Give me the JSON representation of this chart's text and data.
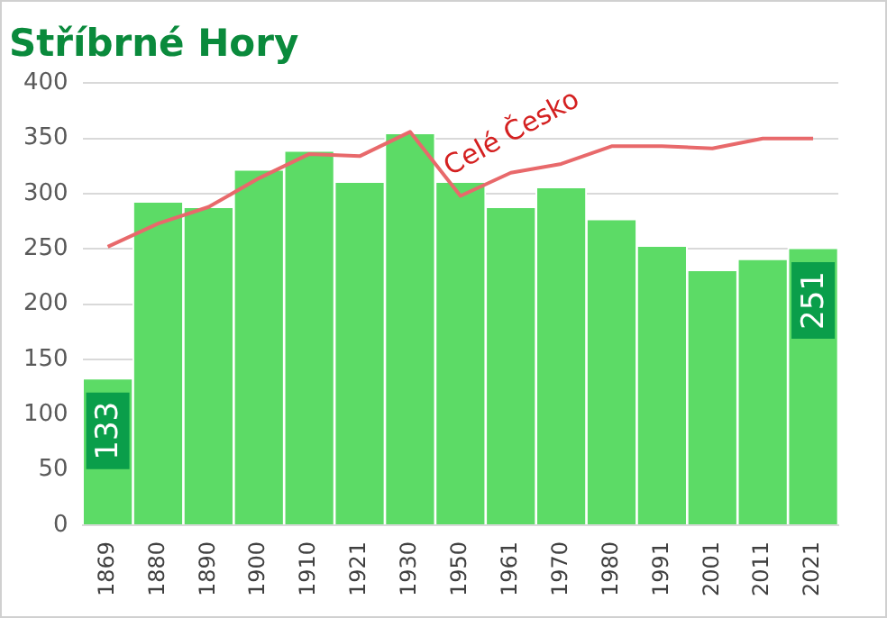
{
  "chart_data": {
    "type": "bar",
    "title": "Stříbrné Hory",
    "categories": [
      "1869",
      "1880",
      "1890",
      "1900",
      "1910",
      "1921",
      "1930",
      "1950",
      "1961",
      "1970",
      "1980",
      "1991",
      "2001",
      "2011",
      "2021"
    ],
    "series": [
      {
        "color": "#5cdb66",
        "values": [
          133,
          293,
          288,
          322,
          339,
          311,
          355,
          311,
          288,
          306,
          277,
          253,
          231,
          241,
          251
        ],
        "value_labels": [
          "133",
          null,
          null,
          null,
          null,
          null,
          null,
          null,
          null,
          null,
          null,
          null,
          null,
          null,
          "251"
        ]
      },
      {
        "type": "line",
        "name": "Celé Česko",
        "color": "#e8696b",
        "values": [
          252,
          273,
          288,
          314,
          336,
          334,
          356,
          298,
          319,
          327,
          343,
          343,
          341,
          350,
          350
        ]
      }
    ],
    "ylim": [
      0,
      400
    ],
    "yticks": [
      0,
      50,
      100,
      150,
      200,
      250,
      300,
      350,
      400
    ],
    "grid": "y",
    "legend": false,
    "marker": "none"
  }
}
